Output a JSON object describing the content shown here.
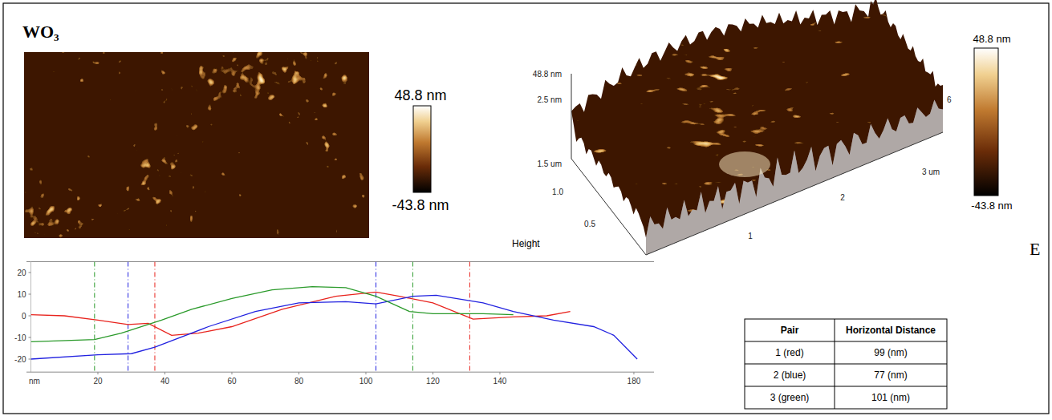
{
  "panel_title": "WO₃",
  "panel_letter": "E",
  "image2d": {
    "colorbar": {
      "range": [
        -43.8,
        48.8
      ],
      "ticks": [
        {
          "value": 48.8,
          "label": "48.8 nm"
        },
        {
          "value": -43.8,
          "label": "-43.8 nm"
        }
      ]
    }
  },
  "image3d": {
    "z_labels": [
      "48.8 nm",
      "2.5 nm"
    ],
    "y_labels": [
      "1.5 um",
      "1.0",
      "0.5"
    ],
    "x_labels": [
      "1",
      "2",
      "3 um"
    ],
    "side_label": "6",
    "caption": "Height",
    "colorbar": {
      "range": [
        -43.8,
        48.8
      ],
      "ticks": [
        {
          "value": 48.8,
          "label": "48.8 nm"
        },
        {
          "value": -43.8,
          "label": "-43.8 nm"
        }
      ]
    }
  },
  "chart_data": {
    "type": "line",
    "xlabel": "nm",
    "xlim": [
      0,
      186
    ],
    "ylim": [
      -26,
      25
    ],
    "xticks": [
      20,
      40,
      60,
      80,
      100,
      120,
      140,
      180
    ],
    "yticks": [
      -20,
      -10,
      0,
      10,
      20
    ],
    "grid": false,
    "series": [
      {
        "color": "#e8231d",
        "line_style": "solid",
        "cursor_x": [
          37,
          131
        ],
        "x": [
          0,
          10,
          20,
          29,
          35,
          42,
          50,
          60,
          75,
          91,
          103,
          110,
          120,
          132,
          144,
          154,
          161
        ],
        "values": [
          0.5,
          0,
          -2,
          -4,
          -3.5,
          -9,
          -8,
          -5,
          3,
          9,
          11,
          9,
          6,
          -1.5,
          -0.5,
          0,
          2
        ]
      },
      {
        "color": "#2222e0",
        "line_style": "solid",
        "cursor_x": [
          29,
          103
        ],
        "x": [
          0,
          20,
          30,
          37,
          53,
          67,
          80,
          94,
          103,
          114,
          121,
          135,
          144,
          156,
          168,
          174,
          181
        ],
        "values": [
          -20,
          -18,
          -17.5,
          -14.5,
          -5,
          2,
          6,
          6.5,
          5.5,
          9,
          9.5,
          6,
          2,
          -2,
          -5,
          -9,
          -20
        ]
      },
      {
        "color": "#2a9a2a",
        "line_style": "solid",
        "cursor_x": [
          19,
          114
        ],
        "x": [
          0,
          19,
          27,
          39,
          48,
          60,
          72,
          84,
          94,
          103,
          113,
          120,
          135,
          144
        ],
        "values": [
          -12,
          -11,
          -8,
          -2,
          3,
          8,
          12,
          13.5,
          13,
          9,
          2,
          1,
          1,
          0.5
        ]
      }
    ]
  },
  "table": {
    "header": [
      "Pair",
      "Horizontal Distance"
    ],
    "rows": [
      [
        "1 (red)",
        "99 (nm)"
      ],
      [
        "2 (blue)",
        "77 (nm)"
      ],
      [
        "3 (green)",
        "101 (nm)"
      ]
    ]
  }
}
